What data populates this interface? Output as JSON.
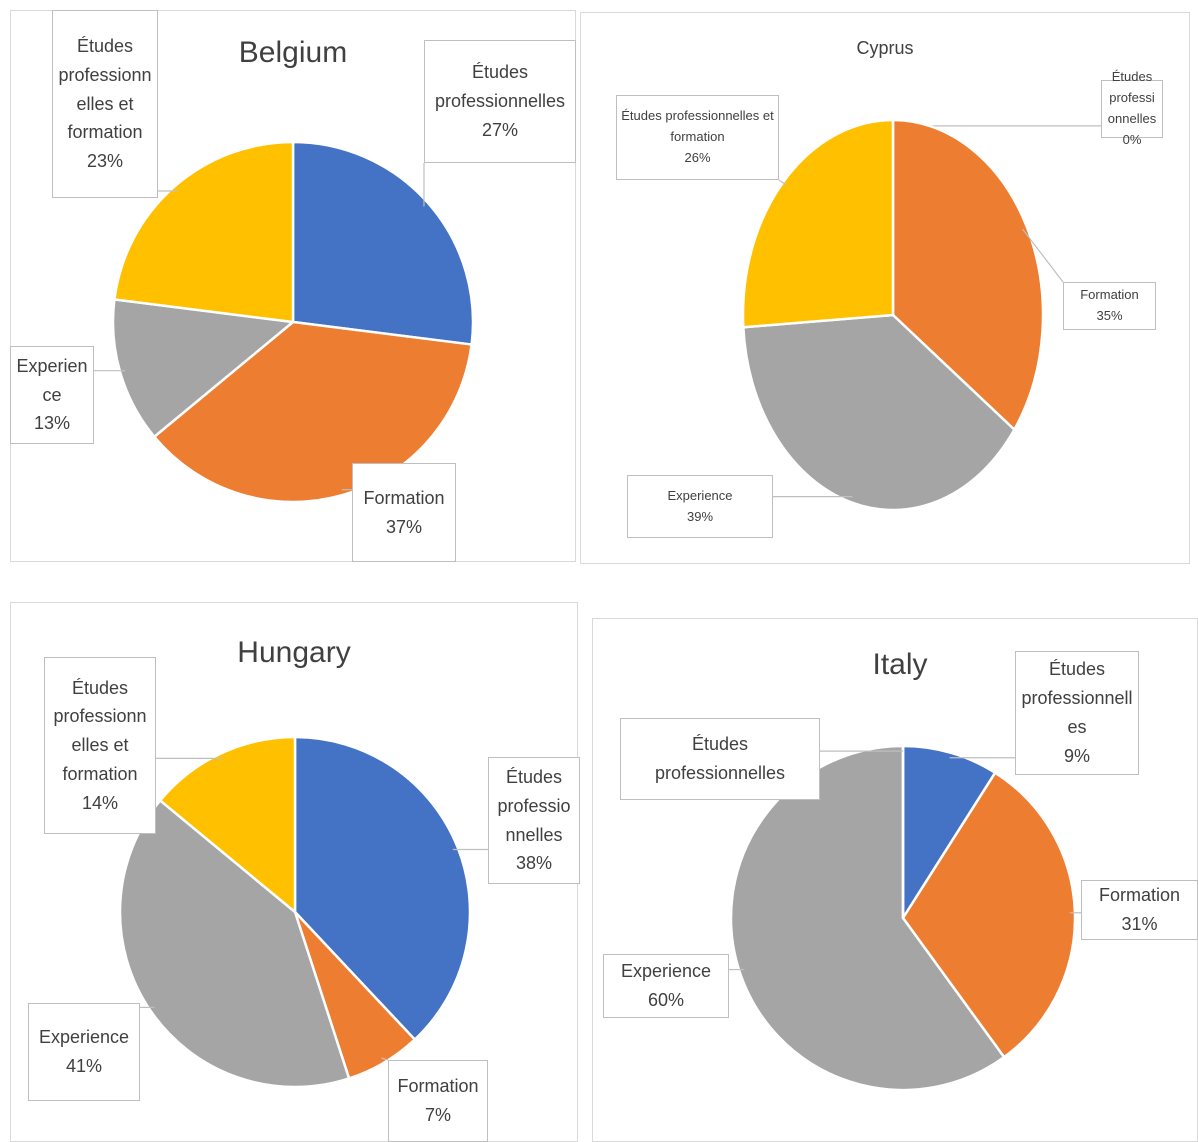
{
  "chart_data": [
    {
      "type": "pie",
      "title": "Belgium",
      "categories": [
        "Études professionnelles",
        "Formation",
        "Experience",
        "Études professionnelles et formation"
      ],
      "values": [
        27,
        37,
        13,
        23
      ],
      "value_labels": [
        "27%",
        "37%",
        "13%",
        "23%"
      ],
      "colors": [
        "#4472c4",
        "#ed7d31",
        "#a5a5a5",
        "#ffc000"
      ]
    },
    {
      "type": "pie",
      "title": "Cyprus",
      "categories": [
        "Études professionnelles",
        "Formation",
        "Experience",
        "Études professionnelles et formation"
      ],
      "values": [
        0,
        35,
        39,
        26
      ],
      "value_labels": [
        "0%",
        "35%",
        "39%",
        "26%"
      ],
      "colors": [
        "#4472c4",
        "#ed7d31",
        "#a5a5a5",
        "#ffc000"
      ]
    },
    {
      "type": "pie",
      "title": "Hungary",
      "categories": [
        "Études professionnelles",
        "Formation",
        "Experience",
        "Études professionnelles et formation"
      ],
      "values": [
        38,
        7,
        41,
        14
      ],
      "value_labels": [
        "38%",
        "7%",
        "41%",
        "14%"
      ],
      "colors": [
        "#4472c4",
        "#ed7d31",
        "#a5a5a5",
        "#ffc000"
      ]
    },
    {
      "type": "pie",
      "title": "Italy",
      "categories": [
        "Études professionnelles",
        "Formation",
        "Experience",
        "Études professionnelles"
      ],
      "values": [
        9,
        31,
        60,
        0
      ],
      "value_labels": [
        "9%",
        "31%",
        "60%",
        null
      ],
      "colors": [
        "#4472c4",
        "#ed7d31",
        "#a5a5a5",
        "#ffc000"
      ]
    }
  ]
}
